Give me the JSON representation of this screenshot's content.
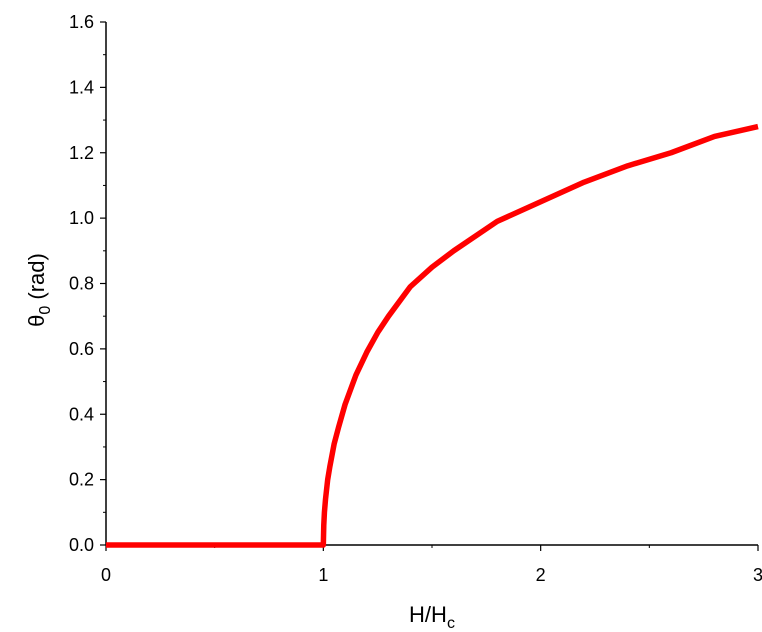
{
  "chart_data": {
    "type": "line",
    "xlabel": {
      "main": "H/H",
      "sub": "c"
    },
    "ylabel": {
      "main": "θ",
      "sub": "0",
      "suffix": " (rad)"
    },
    "xlim": [
      0,
      3
    ],
    "ylim": [
      0,
      1.6
    ],
    "x_ticks": [
      {
        "value": 0,
        "label": "0"
      },
      {
        "value": 1,
        "label": "1"
      },
      {
        "value": 2,
        "label": "2"
      },
      {
        "value": 3,
        "label": "3"
      }
    ],
    "y_ticks": [
      {
        "value": 0.0,
        "label": "0.0"
      },
      {
        "value": 0.2,
        "label": "0.2"
      },
      {
        "value": 0.4,
        "label": "0.4"
      },
      {
        "value": 0.6,
        "label": "0.6"
      },
      {
        "value": 0.8,
        "label": "0.8"
      },
      {
        "value": 1.0,
        "label": "1.0"
      },
      {
        "value": 1.2,
        "label": "1.2"
      },
      {
        "value": 1.4,
        "label": "1.4"
      },
      {
        "value": 1.6,
        "label": "1.6"
      }
    ],
    "grid": false,
    "series": [
      {
        "color": "#ff0000",
        "x": [
          0,
          1.0,
          1.0,
          1.002,
          1.005,
          1.01,
          1.02,
          1.03,
          1.05,
          1.07,
          1.1,
          1.15,
          1.2,
          1.25,
          1.3,
          1.4,
          1.5,
          1.6,
          1.8,
          2.0,
          2.2,
          2.4,
          2.6,
          2.8,
          3.0
        ],
        "y": [
          0,
          0,
          0,
          0.06,
          0.1,
          0.14,
          0.2,
          0.24,
          0.31,
          0.36,
          0.43,
          0.52,
          0.59,
          0.65,
          0.7,
          0.79,
          0.85,
          0.9,
          0.99,
          1.05,
          1.11,
          1.16,
          1.2,
          1.25,
          1.28
        ]
      }
    ]
  }
}
